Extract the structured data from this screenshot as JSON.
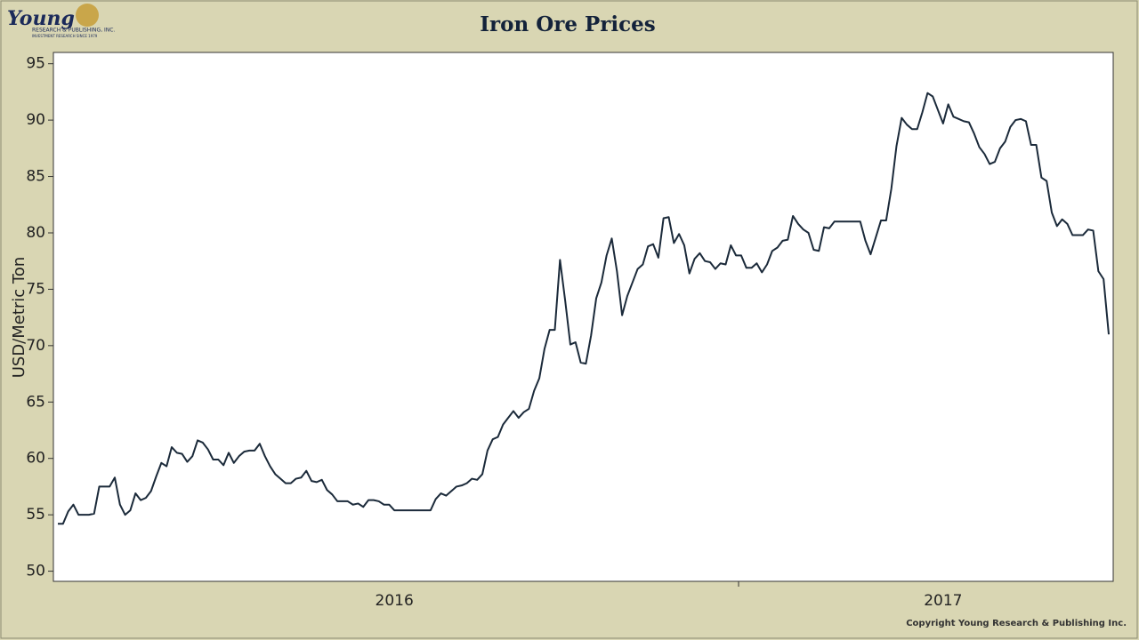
{
  "logo": {
    "name": "Young",
    "line1": "RESEARCH & PUBLISHING, INC.",
    "line2": "INVESTMENT RESEARCH SINCE 1979"
  },
  "copyright": "Copyright Young Research & Publishing Inc.",
  "chart_data": {
    "type": "line",
    "title": "Iron Ore Prices",
    "y_label": "USD/Metric Ton",
    "ylim": [
      49.1,
      96
    ],
    "yticks": [
      50,
      55,
      60,
      65,
      70,
      75,
      80,
      85,
      90,
      95
    ],
    "color": "#1b2a3a",
    "categories": [
      null,
      null,
      null,
      null,
      null,
      null,
      null,
      null,
      null,
      null,
      null,
      null,
      null,
      null,
      null,
      null,
      null,
      null,
      null,
      null,
      null,
      null,
      null,
      null,
      null,
      null,
      null,
      null,
      null,
      null,
      null,
      null,
      null,
      null,
      null,
      null,
      null,
      null,
      null,
      null,
      null,
      null,
      null,
      null,
      null,
      null,
      null,
      null,
      null,
      null,
      null,
      null,
      null,
      null,
      null,
      null,
      null,
      null,
      null,
      null,
      null,
      null,
      null,
      null,
      null,
      "2016",
      null,
      null,
      null,
      null,
      null,
      null,
      null,
      null,
      null,
      null,
      null,
      null,
      null,
      null,
      null,
      null,
      null,
      null,
      null,
      null,
      null,
      null,
      null,
      null,
      null,
      null,
      null,
      null,
      null,
      null,
      null,
      null,
      null,
      null,
      null,
      null,
      null,
      null,
      null,
      null,
      null,
      null,
      null,
      null,
      null,
      null,
      null,
      null,
      null,
      null,
      null,
      null,
      null,
      null,
      null,
      null,
      null,
      null,
      null,
      null,
      null,
      null,
      null,
      null,
      null,
      null,
      null,
      null,
      null,
      null,
      null,
      null,
      null,
      null,
      null,
      null,
      null,
      null,
      null,
      null,
      null,
      null,
      null,
      null,
      null,
      null,
      null,
      null,
      null,
      null,
      null,
      null,
      null,
      null,
      null,
      null,
      null,
      null,
      null,
      null,
      null,
      null,
      null,
      null,
      null,
      "2017",
      null,
      null,
      null,
      null,
      null,
      null,
      null,
      null,
      null,
      null,
      null,
      null,
      null,
      null,
      null,
      null,
      null,
      null,
      null,
      null,
      null,
      null,
      null,
      null,
      null,
      null,
      null,
      null,
      null,
      null,
      null,
      null
    ],
    "values": [
      54.2,
      54.2,
      55.3,
      55.9,
      55.0,
      55.0,
      55.0,
      55.1,
      57.5,
      57.5,
      57.5,
      58.3,
      55.9,
      55.0,
      55.4,
      56.9,
      56.3,
      56.5,
      57.1,
      58.4,
      59.6,
      59.3,
      61.0,
      60.5,
      60.4,
      59.7,
      60.2,
      61.6,
      61.4,
      60.8,
      59.9,
      59.9,
      59.4,
      60.5,
      59.6,
      60.2,
      60.6,
      60.7,
      60.7,
      61.3,
      60.2,
      59.3,
      58.6,
      58.2,
      57.8,
      57.8,
      58.2,
      58.3,
      58.9,
      58.0,
      57.9,
      58.1,
      57.2,
      56.8,
      56.2,
      56.2,
      56.2,
      55.9,
      56.0,
      55.7,
      56.3,
      56.3,
      56.2,
      55.9,
      55.9,
      55.4,
      55.4,
      55.4,
      55.4,
      55.4,
      55.4,
      55.4,
      55.4,
      56.4,
      56.9,
      56.7,
      57.1,
      57.5,
      57.6,
      57.8,
      58.2,
      58.1,
      58.6,
      60.7,
      61.7,
      61.9,
      63.0,
      63.6,
      64.2,
      63.6,
      64.1,
      64.4,
      66.0,
      67.1,
      69.7,
      71.4,
      71.4,
      77.6,
      74.0,
      70.1,
      70.3,
      68.5,
      68.4,
      70.9,
      74.2,
      75.6,
      78.0,
      79.5,
      76.6,
      72.7,
      74.4,
      75.6,
      76.8,
      77.2,
      78.8,
      79.0,
      77.8,
      81.3,
      81.4,
      79.1,
      79.9,
      78.9,
      76.4,
      77.7,
      78.2,
      77.5,
      77.4,
      76.8,
      77.3,
      77.2,
      78.9,
      78.0,
      78.0,
      76.9,
      76.9,
      77.3,
      76.5,
      77.2,
      78.4,
      78.7,
      79.3,
      79.4,
      81.5,
      80.8,
      80.3,
      80.0,
      78.5,
      78.4,
      80.5,
      80.4,
      81.0,
      81.0,
      81.0,
      81.0,
      81.0,
      81.0,
      79.3,
      78.1,
      79.6,
      81.1,
      81.1,
      83.9,
      87.7,
      90.2,
      89.6,
      89.2,
      89.2,
      90.7,
      92.4,
      92.1,
      90.9,
      89.7,
      91.4,
      90.3,
      90.1,
      89.9,
      89.8,
      88.8,
      87.6,
      87.0,
      86.1,
      86.3,
      87.5,
      88.1,
      89.4,
      90.0,
      90.1,
      89.9,
      87.8,
      87.8,
      84.9,
      84.6,
      81.8,
      80.6,
      81.2,
      80.8,
      79.8,
      79.8,
      79.8,
      80.3,
      80.2,
      76.6,
      75.9,
      71.0
    ]
  }
}
